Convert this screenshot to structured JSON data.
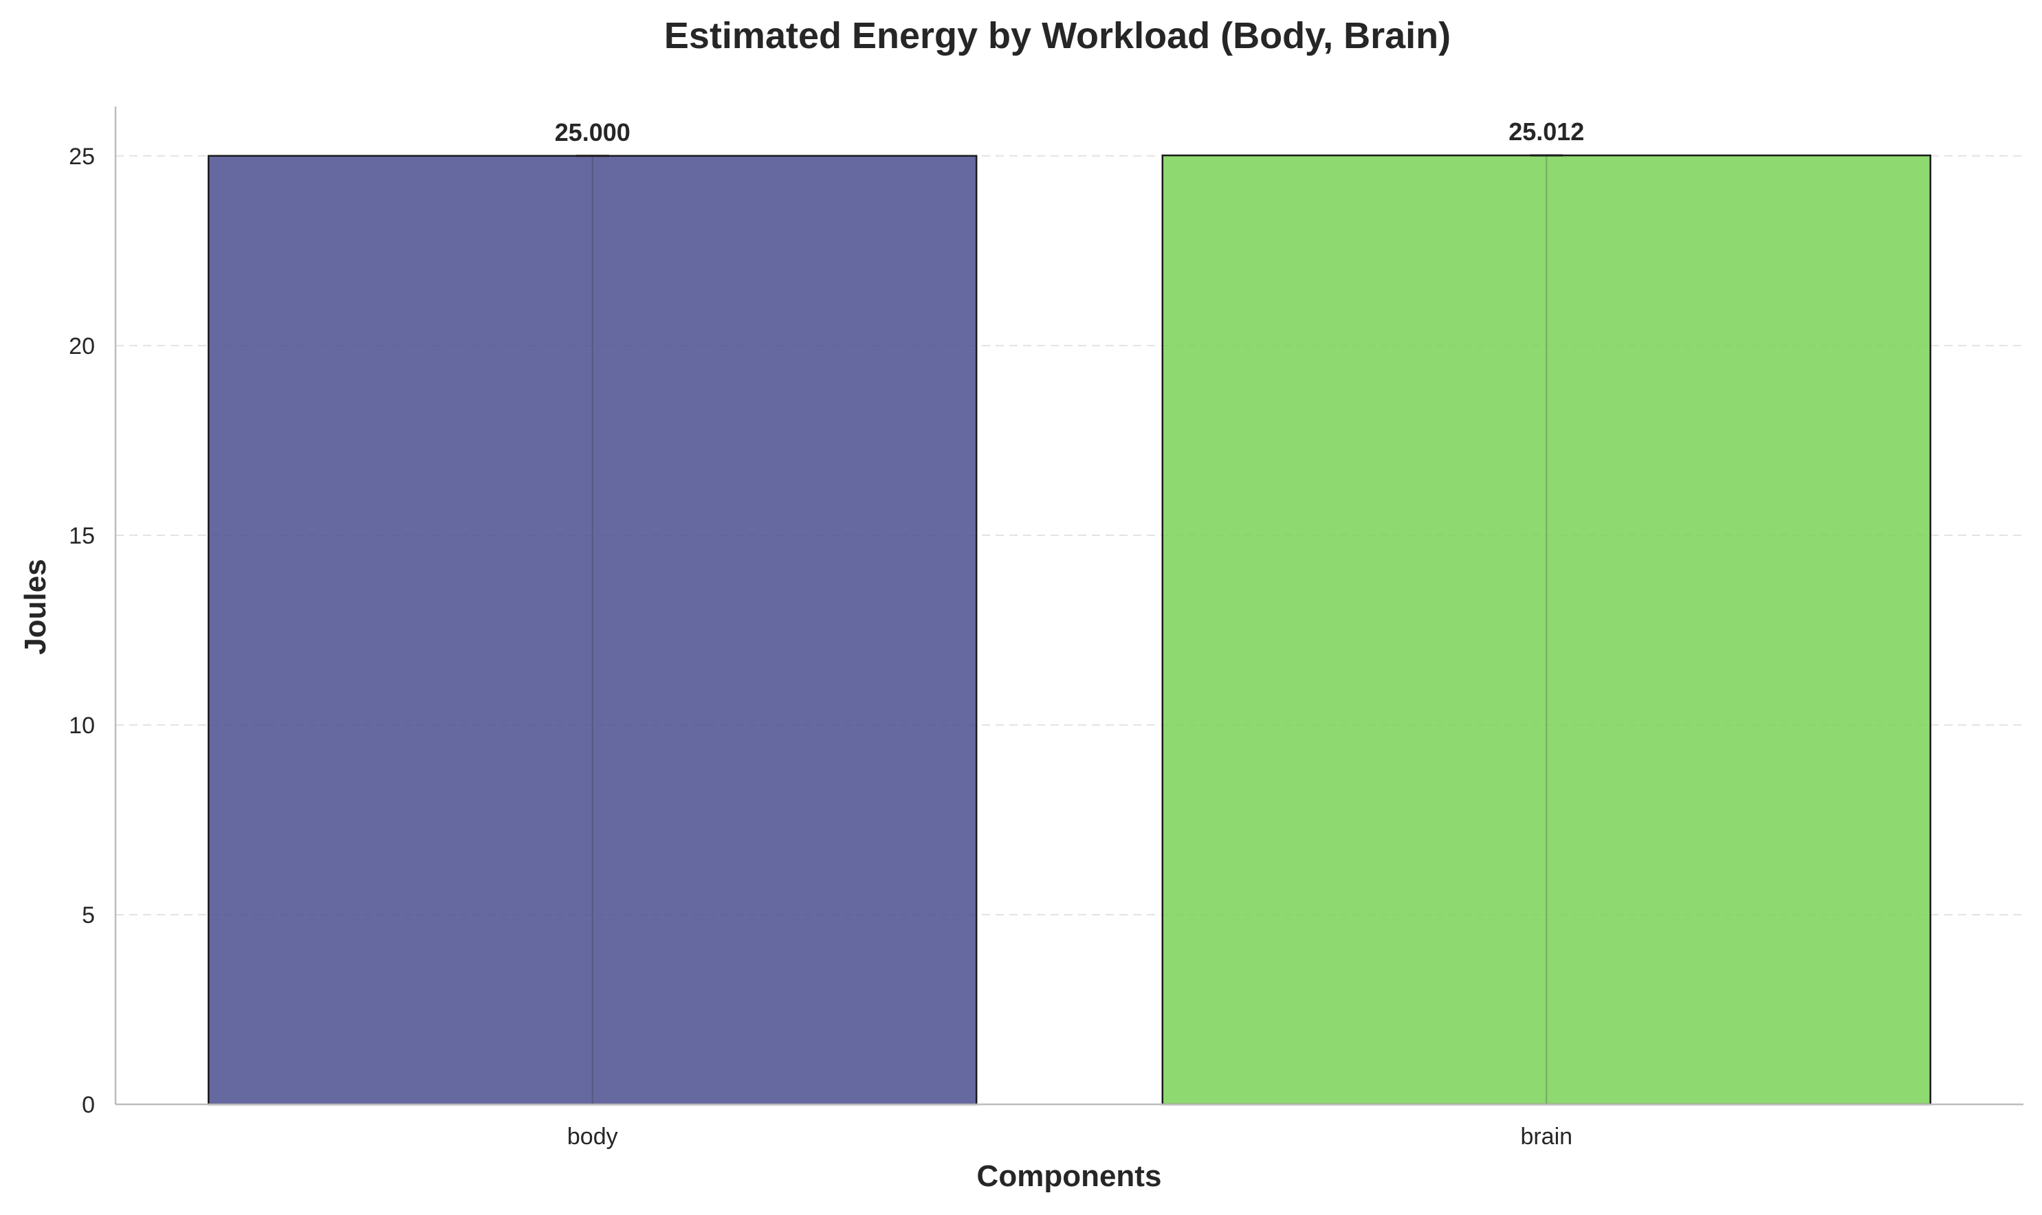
{
  "chart_data": {
    "type": "bar",
    "title": "Estimated Energy by Workload (Body, Brain)",
    "xlabel": "Components",
    "ylabel": "Joules",
    "categories": [
      "body",
      "brain"
    ],
    "values": [
      25.0,
      25.012
    ],
    "value_labels": [
      "25.000",
      "25.012"
    ],
    "error_bars": [
      0.0,
      0.0
    ],
    "colors": [
      "#4b4d8f",
      "#7ad257"
    ],
    "bar_edge_color": "#1a1a1a",
    "ylim": [
      0,
      26.3
    ],
    "yticks": [
      0,
      5,
      10,
      15,
      20,
      25
    ],
    "ytick_labels": [
      "0",
      "5",
      "10",
      "15",
      "20",
      "25"
    ],
    "grid": "y-dashed",
    "legend": "none"
  }
}
